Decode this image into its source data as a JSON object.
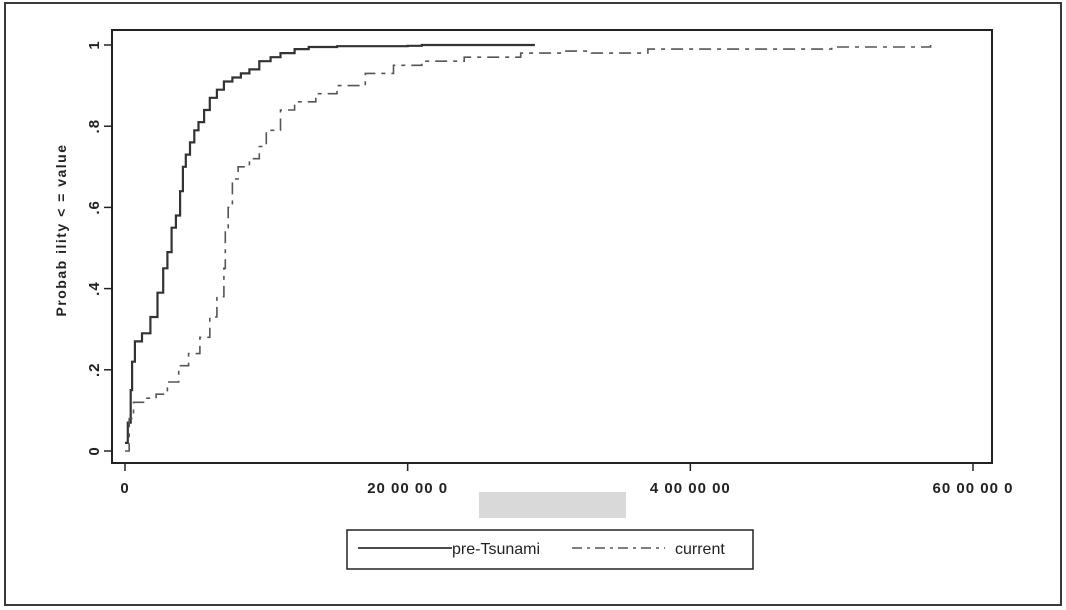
{
  "chart_data": {
    "type": "line",
    "title": "",
    "xlabel": "",
    "ylabel": "Probab ility < = value",
    "xlim": [
      -50000,
      6000000
    ],
    "ylim": [
      0,
      1
    ],
    "x_ticks": [
      0,
      2000000,
      4000000,
      6000000
    ],
    "x_tick_labels": [
      "0",
      "20 00 00 0",
      "4 00 00 00",
      "60 00 00 0"
    ],
    "y_ticks": [
      0,
      0.2,
      0.4,
      0.6,
      0.8,
      1
    ],
    "y_tick_labels": [
      "0",
      ".2",
      ".4",
      ".6",
      ".8",
      "1"
    ],
    "grid": false,
    "legend_position": "bottom",
    "series": [
      {
        "name": "pre-Tsunami",
        "style": "solid",
        "color": "#333333",
        "x": [
          0,
          20000,
          40000,
          50000,
          70000,
          120000,
          180000,
          230000,
          270000,
          300000,
          330000,
          360000,
          390000,
          410000,
          430000,
          460000,
          490000,
          520000,
          560000,
          600000,
          650000,
          700000,
          760000,
          820000,
          880000,
          950000,
          1030000,
          1100000,
          1200000,
          1300000,
          1500000,
          2000000,
          2100000,
          2900000
        ],
        "y": [
          0.02,
          0.07,
          0.15,
          0.22,
          0.27,
          0.29,
          0.33,
          0.39,
          0.45,
          0.49,
          0.55,
          0.58,
          0.64,
          0.7,
          0.73,
          0.76,
          0.79,
          0.81,
          0.84,
          0.87,
          0.89,
          0.91,
          0.92,
          0.93,
          0.94,
          0.96,
          0.97,
          0.98,
          0.99,
          0.995,
          0.997,
          0.998,
          1.0,
          1.0
        ]
      },
      {
        "name": "current",
        "style": "dashed",
        "color": "#555555",
        "x": [
          0,
          30000,
          60000,
          150000,
          220000,
          300000,
          380000,
          450000,
          530000,
          600000,
          650000,
          700000,
          710000,
          730000,
          760000,
          800000,
          880000,
          950000,
          1000000,
          1100000,
          1200000,
          1350000,
          1500000,
          1700000,
          1900000,
          2100000,
          2400000,
          2800000,
          3100000,
          3300000,
          3500000,
          3700000,
          5000000,
          5700000
        ],
        "y": [
          0.0,
          0.08,
          0.12,
          0.13,
          0.14,
          0.17,
          0.21,
          0.24,
          0.28,
          0.33,
          0.38,
          0.45,
          0.55,
          0.6,
          0.67,
          0.7,
          0.72,
          0.75,
          0.79,
          0.84,
          0.86,
          0.88,
          0.9,
          0.93,
          0.95,
          0.96,
          0.97,
          0.98,
          0.985,
          0.98,
          0.98,
          0.99,
          0.995,
          1.0
        ]
      }
    ]
  },
  "legend": {
    "items": [
      "pre-Tsunami",
      "current"
    ]
  }
}
